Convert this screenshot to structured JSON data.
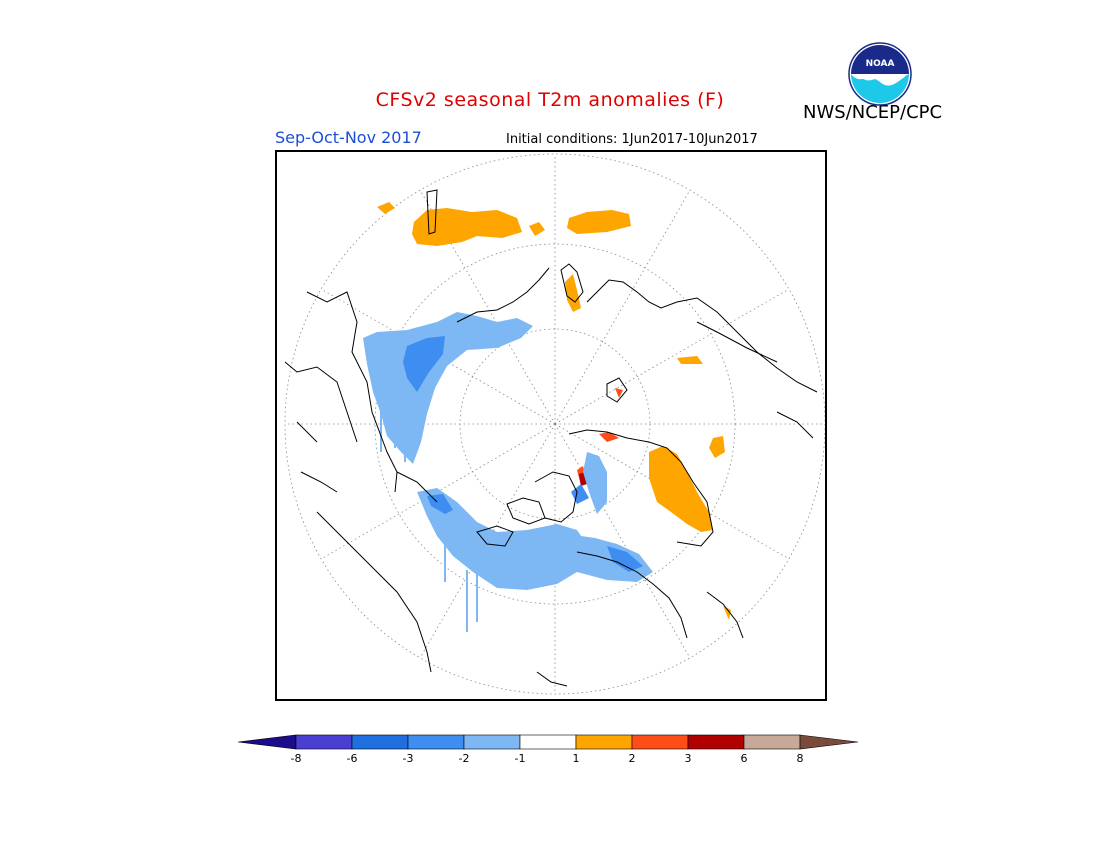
{
  "header": {
    "title": "CFSv2 seasonal T2m anomalies (F)",
    "season": "Sep-Oct-Nov 2017",
    "initial_conditions": "Initial conditions: 1Jun2017-10Jun2017",
    "agency": "NWS/NCEP/CPC",
    "logo_text": "NOAA"
  },
  "map": {
    "projection": "north polar stereographic",
    "graticule": "dotted"
  },
  "legend": {
    "labels": [
      "-8",
      "-6",
      "-3",
      "-2",
      "-1",
      "1",
      "2",
      "3",
      "6",
      "8"
    ],
    "colors": [
      "#1a0c8c",
      "#4a3fd0",
      "#1f6fe0",
      "#3d8ef0",
      "#7db8f5",
      "#ffffff",
      "#ffa500",
      "#ff4d1a",
      "#b00000",
      "#c8a898",
      "#7a4a3a"
    ]
  }
}
